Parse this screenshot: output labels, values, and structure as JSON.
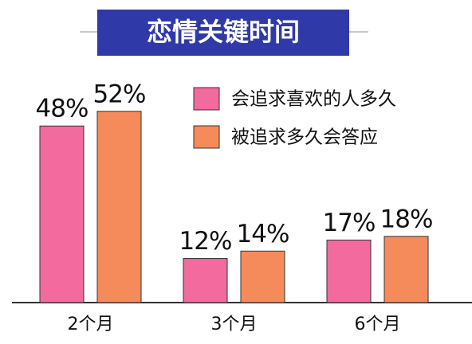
{
  "chart_data": {
    "type": "bar",
    "title": "恋情关键时间",
    "categories": [
      "2个月",
      "3个月",
      "6个月"
    ],
    "series": [
      {
        "name": "会追求喜欢的人多久",
        "color": "#f26a9e",
        "values": [
          48,
          12,
          17
        ],
        "value_labels": [
          "48%",
          "12%",
          "17%"
        ]
      },
      {
        "name": "被追求多久会答应",
        "color": "#f58b5a",
        "values": [
          52,
          14,
          18
        ],
        "value_labels": [
          "52%",
          "14%",
          "18%"
        ]
      }
    ]
  }
}
